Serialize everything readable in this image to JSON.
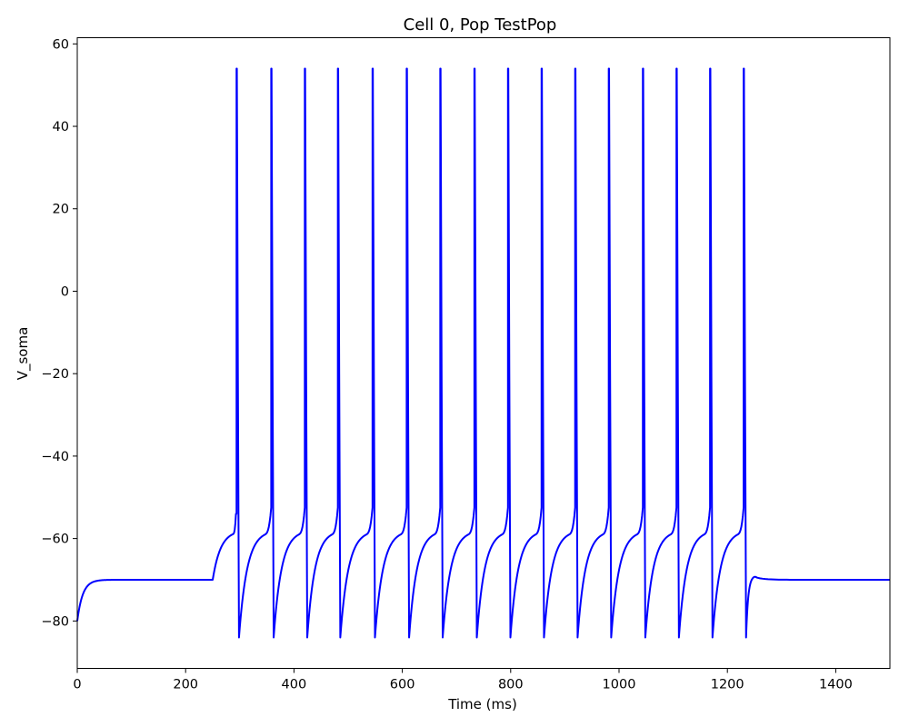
{
  "chart_data": {
    "type": "line",
    "title": "Cell 0, Pop TestPop",
    "xlabel": "Time (ms)",
    "ylabel": "V_soma",
    "xlim": [
      0,
      1500
    ],
    "ylim": [
      -91.5,
      61.5
    ],
    "xticks": [
      0,
      200,
      400,
      600,
      800,
      1000,
      1200,
      1400
    ],
    "yticks": [
      -80,
      -60,
      -40,
      -20,
      0,
      20,
      40,
      60
    ],
    "grid": false,
    "line_color": "#0000ff",
    "series": [
      {
        "rest_potential_mV": -70,
        "initial_potential_mV": -80,
        "stimulus_start_ms": 250,
        "stimulus_end_ms": 1250,
        "spike_peak_mV": 54,
        "trough_potential_mV": -84,
        "spike_times_ms": [
          294,
          358,
          420,
          481,
          545,
          608,
          670,
          733,
          795,
          857,
          919,
          981,
          1044,
          1106,
          1168,
          1230
        ]
      }
    ]
  }
}
